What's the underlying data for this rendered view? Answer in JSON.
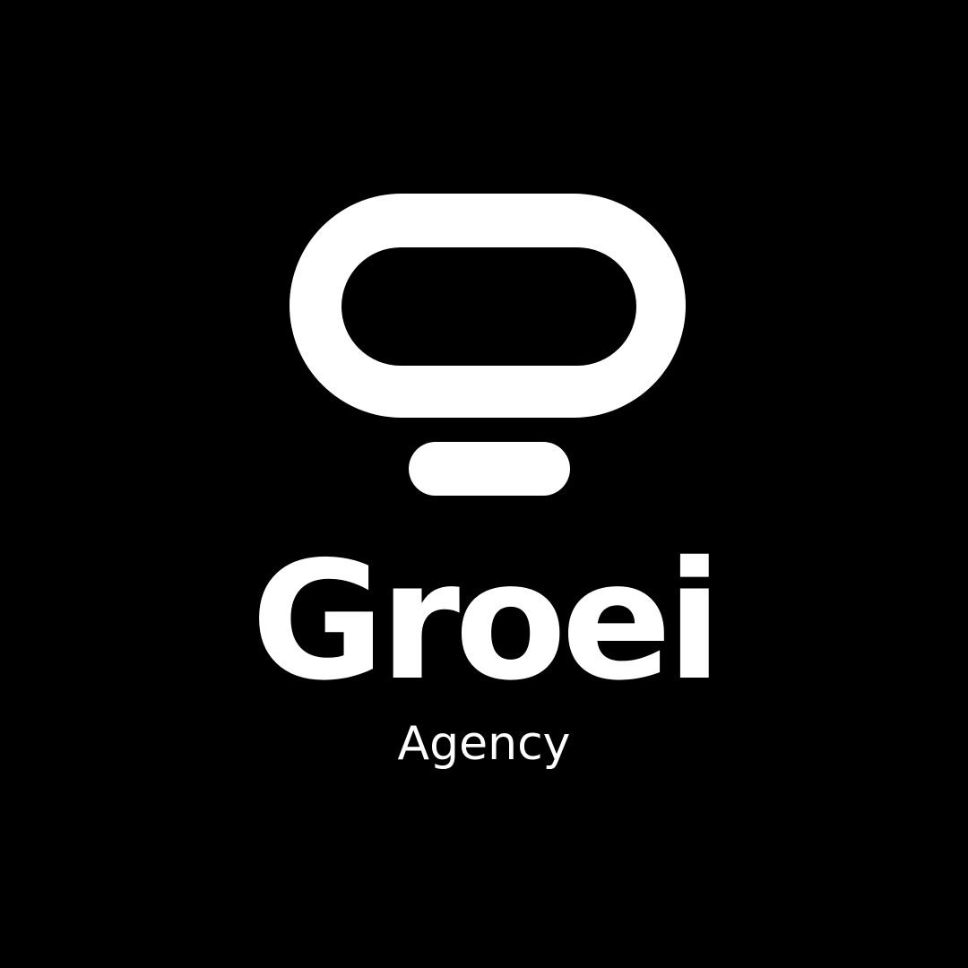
{
  "logo": {
    "icon": "lightbulb-icon",
    "name": "Groei",
    "tagline": "Agency"
  },
  "colors": {
    "background": "#000000",
    "foreground": "#ffffff"
  }
}
